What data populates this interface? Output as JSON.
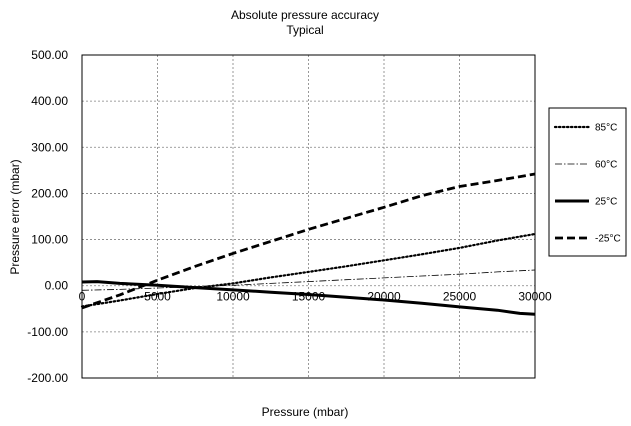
{
  "chart_data": {
    "type": "line",
    "title": "Absolute pressure accuracy",
    "subtitle": "Typical",
    "xlabel": "Pressure (mbar)",
    "ylabel": "Pressure error (mbar)",
    "xlim": [
      0,
      30000
    ],
    "ylim": [
      -200,
      500
    ],
    "x_ticks": [
      "0",
      "5000",
      "10000",
      "15000",
      "20000",
      "25000",
      "30000"
    ],
    "y_ticks": [
      "500.00",
      "400.00",
      "300.00",
      "200.00",
      "100.00",
      "0.00",
      "-100.00",
      "-200.00"
    ],
    "grid": true,
    "legend_position": "right",
    "series": [
      {
        "name": "85°C",
        "style": "dotted",
        "color": "#000000",
        "x": [
          0,
          2500,
          5000,
          7500,
          10000,
          12500,
          15000,
          17500,
          20000,
          22500,
          25000,
          27500,
          30000
        ],
        "y": [
          -45,
          -32,
          -18,
          -5,
          5,
          18,
          30,
          42,
          55,
          68,
          82,
          98,
          112
        ]
      },
      {
        "name": "60°C",
        "style": "dash-dot",
        "color": "#000000",
        "x": [
          0,
          2500,
          5000,
          7500,
          10000,
          12500,
          15000,
          17500,
          20000,
          22500,
          25000,
          27500,
          30000
        ],
        "y": [
          -10,
          -8,
          -5,
          -2,
          1,
          5,
          9,
          13,
          17,
          21,
          25,
          30,
          34
        ]
      },
      {
        "name": "25°C",
        "style": "solid",
        "color": "#000000",
        "x": [
          0,
          1000,
          2500,
          5000,
          7500,
          10000,
          12500,
          15000,
          17500,
          20000,
          22500,
          25000,
          27500,
          29000,
          30000
        ],
        "y": [
          8,
          9,
          5,
          1,
          -4,
          -9,
          -14,
          -19,
          -25,
          -31,
          -38,
          -46,
          -53,
          -60,
          -62
        ]
      },
      {
        "name": "-25°C",
        "style": "dashed",
        "color": "#000000",
        "x": [
          0,
          2500,
          5000,
          7500,
          10000,
          12500,
          15000,
          17500,
          20000,
          22500,
          25000,
          27500,
          30000
        ],
        "y": [
          -48,
          -20,
          12,
          42,
          70,
          96,
          122,
          146,
          170,
          195,
          215,
          228,
          242
        ]
      }
    ]
  }
}
